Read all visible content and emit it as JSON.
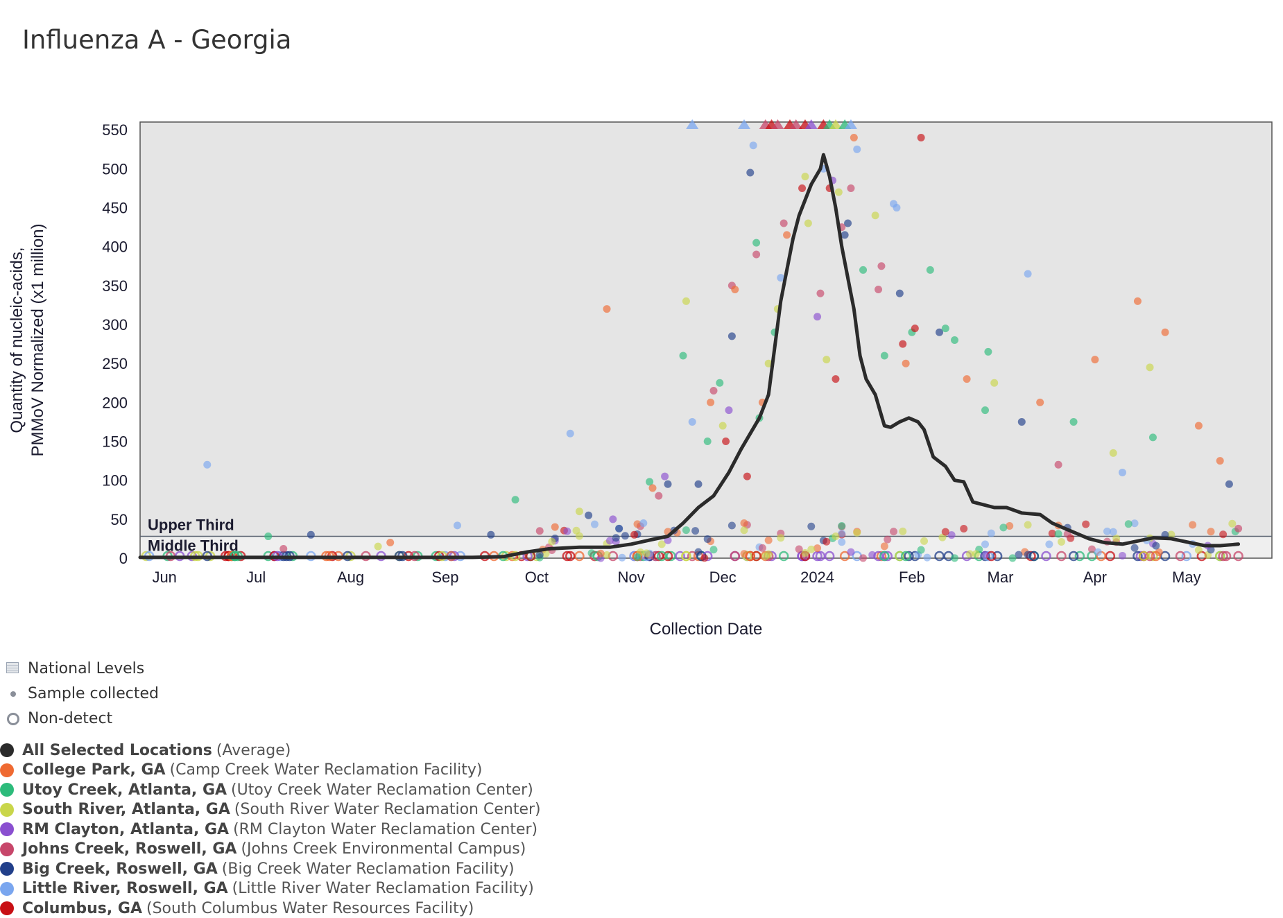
{
  "title": "Influenza A - Georgia",
  "chart_data": {
    "type": "scatter",
    "title": "Influenza A - Georgia",
    "xlabel": "Collection Date",
    "ylabel_line1": "Quantity of nucleic-acids,",
    "ylabel_line2": "PMMoV Normalized (x1 million)",
    "ylim": [
      0,
      560
    ],
    "y_ticks": [
      0,
      50,
      100,
      150,
      200,
      250,
      300,
      350,
      400,
      450,
      500,
      550
    ],
    "x_range": [
      "2023-05-24",
      "2024-05-29"
    ],
    "x_ticks": [
      {
        "date": "2023-06-01",
        "label": "Jun"
      },
      {
        "date": "2023-07-01",
        "label": "Jul"
      },
      {
        "date": "2023-08-01",
        "label": "Aug"
      },
      {
        "date": "2023-09-01",
        "label": "Sep"
      },
      {
        "date": "2023-10-01",
        "label": "Oct"
      },
      {
        "date": "2023-11-01",
        "label": "Nov"
      },
      {
        "date": "2023-12-01",
        "label": "Dec"
      },
      {
        "date": "2024-01-01",
        "label": "2024"
      },
      {
        "date": "2024-02-01",
        "label": "Feb"
      },
      {
        "date": "2024-03-01",
        "label": "Mar"
      },
      {
        "date": "2024-04-01",
        "label": "Apr"
      },
      {
        "date": "2024-05-01",
        "label": "May"
      }
    ],
    "threshold": {
      "value": 28,
      "upper_label": "Upper Third",
      "middle_label": "Middle Third"
    },
    "grid": false,
    "legend_position": "bottom-left",
    "average_series": {
      "name": "All Selected Locations",
      "color": "#2b2b2b",
      "points": [
        [
          "2023-05-24",
          1
        ],
        [
          "2023-06-15",
          1
        ],
        [
          "2023-07-15",
          1
        ],
        [
          "2023-08-15",
          1
        ],
        [
          "2023-09-10",
          1
        ],
        [
          "2023-09-20",
          2
        ],
        [
          "2023-09-28",
          8
        ],
        [
          "2023-10-05",
          12
        ],
        [
          "2023-10-15",
          14
        ],
        [
          "2023-10-25",
          14
        ],
        [
          "2023-11-01",
          18
        ],
        [
          "2023-11-08",
          24
        ],
        [
          "2023-11-13",
          28
        ],
        [
          "2023-11-18",
          45
        ],
        [
          "2023-11-23",
          65
        ],
        [
          "2023-11-28",
          80
        ],
        [
          "2023-12-03",
          110
        ],
        [
          "2023-12-07",
          140
        ],
        [
          "2023-12-10",
          160
        ],
        [
          "2023-12-13",
          180
        ],
        [
          "2023-12-16",
          210
        ],
        [
          "2023-12-18",
          270
        ],
        [
          "2023-12-20",
          330
        ],
        [
          "2023-12-22",
          370
        ],
        [
          "2023-12-24",
          410
        ],
        [
          "2023-12-26",
          440
        ],
        [
          "2023-12-28",
          460
        ],
        [
          "2023-12-30",
          480
        ],
        [
          "2024-01-02",
          500
        ],
        [
          "2024-01-03",
          518
        ],
        [
          "2024-01-05",
          490
        ],
        [
          "2024-01-07",
          450
        ],
        [
          "2024-01-09",
          400
        ],
        [
          "2024-01-11",
          360
        ],
        [
          "2024-01-13",
          320
        ],
        [
          "2024-01-15",
          260
        ],
        [
          "2024-01-17",
          230
        ],
        [
          "2024-01-20",
          210
        ],
        [
          "2024-01-23",
          170
        ],
        [
          "2024-01-25",
          168
        ],
        [
          "2024-01-28",
          175
        ],
        [
          "2024-01-31",
          180
        ],
        [
          "2024-02-03",
          175
        ],
        [
          "2024-02-05",
          165
        ],
        [
          "2024-02-08",
          130
        ],
        [
          "2024-02-12",
          118
        ],
        [
          "2024-02-15",
          100
        ],
        [
          "2024-02-18",
          98
        ],
        [
          "2024-02-21",
          72
        ],
        [
          "2024-02-25",
          68
        ],
        [
          "2024-02-28",
          65
        ],
        [
          "2024-03-03",
          65
        ],
        [
          "2024-03-08",
          58
        ],
        [
          "2024-03-14",
          56
        ],
        [
          "2024-03-18",
          45
        ],
        [
          "2024-03-24",
          35
        ],
        [
          "2024-03-30",
          25
        ],
        [
          "2024-04-04",
          20
        ],
        [
          "2024-04-10",
          18
        ],
        [
          "2024-04-15",
          22
        ],
        [
          "2024-04-20",
          26
        ],
        [
          "2024-04-26",
          25
        ],
        [
          "2024-05-02",
          20
        ],
        [
          "2024-05-07",
          16
        ],
        [
          "2024-05-12",
          16
        ],
        [
          "2024-05-18",
          18
        ]
      ]
    },
    "series_meta": [
      {
        "name": "College Park, GA",
        "color": "#ef6a32"
      },
      {
        "name": "Utoy Creek, Atlanta, GA",
        "color": "#2dbb7b"
      },
      {
        "name": "South River, Atlanta, GA",
        "color": "#c9d64a"
      },
      {
        "name": "RM Clayton, Atlanta, GA",
        "color": "#8a4fd0"
      },
      {
        "name": "Johns Creek, Roswell, GA",
        "color": "#c7466a"
      },
      {
        "name": "Big Creek, Roswell, GA",
        "color": "#213f8a"
      },
      {
        "name": "Little River, Roswell, GA",
        "color": "#7aa6ef"
      },
      {
        "name": "Columbus, GA",
        "color": "#c80f14"
      }
    ],
    "samples": [
      [
        "2023-06-15",
        120,
        6
      ],
      [
        "2023-07-05",
        28,
        1
      ],
      [
        "2023-07-19",
        30,
        5
      ],
      [
        "2023-07-10",
        12,
        4
      ],
      [
        "2023-08-10",
        15,
        2
      ],
      [
        "2023-08-14",
        20,
        0
      ],
      [
        "2023-09-05",
        42,
        6
      ],
      [
        "2023-09-16",
        30,
        5
      ],
      [
        "2023-09-24",
        75,
        1
      ],
      [
        "2023-10-02",
        35,
        4
      ],
      [
        "2023-10-07",
        40,
        0
      ],
      [
        "2023-10-12",
        160,
        6
      ],
      [
        "2023-10-15",
        60,
        2
      ],
      [
        "2023-10-18",
        55,
        5
      ],
      [
        "2023-10-24",
        320,
        0
      ],
      [
        "2023-10-26",
        50,
        3
      ],
      [
        "2023-10-28",
        38,
        5
      ],
      [
        "2023-11-02",
        30,
        7
      ],
      [
        "2023-11-05",
        45,
        6
      ],
      [
        "2023-11-07",
        98,
        1
      ],
      [
        "2023-11-08",
        90,
        0
      ],
      [
        "2023-11-10",
        80,
        4
      ],
      [
        "2023-11-12",
        105,
        3
      ],
      [
        "2023-11-13",
        95,
        5
      ],
      [
        "2023-11-18",
        260,
        1
      ],
      [
        "2023-11-19",
        330,
        2
      ],
      [
        "2023-11-21",
        175,
        6
      ],
      [
        "2023-11-23",
        95,
        5
      ],
      [
        "2023-11-26",
        150,
        1
      ],
      [
        "2023-11-27",
        200,
        0
      ],
      [
        "2023-11-28",
        215,
        4
      ],
      [
        "2023-11-30",
        225,
        1
      ],
      [
        "2023-12-01",
        170,
        2
      ],
      [
        "2023-12-02",
        150,
        7
      ],
      [
        "2023-12-03",
        190,
        3
      ],
      [
        "2023-12-04",
        285,
        5
      ],
      [
        "2023-12-04",
        350,
        4
      ],
      [
        "2023-12-05",
        345,
        0
      ],
      [
        "2023-12-09",
        105,
        7
      ],
      [
        "2023-12-10",
        495,
        5
      ],
      [
        "2023-12-11",
        530,
        6
      ],
      [
        "2023-12-12",
        390,
        4
      ],
      [
        "2023-12-12",
        405,
        1
      ],
      [
        "2023-12-13",
        180,
        1
      ],
      [
        "2023-12-14",
        200,
        0
      ],
      [
        "2023-12-16",
        250,
        2
      ],
      [
        "2023-12-18",
        290,
        1
      ],
      [
        "2023-12-19",
        320,
        2
      ],
      [
        "2023-12-20",
        360,
        6
      ],
      [
        "2023-12-21",
        430,
        4
      ],
      [
        "2023-12-22",
        415,
        0
      ],
      [
        "2023-12-27",
        475,
        7
      ],
      [
        "2023-12-28",
        490,
        2
      ],
      [
        "2023-12-29",
        430,
        2
      ],
      [
        "2024-01-01",
        310,
        3
      ],
      [
        "2024-01-02",
        340,
        4
      ],
      [
        "2024-01-03",
        500,
        6
      ],
      [
        "2024-01-04",
        255,
        2
      ],
      [
        "2024-01-05",
        475,
        7
      ],
      [
        "2024-01-06",
        485,
        3
      ],
      [
        "2024-01-07",
        230,
        7
      ],
      [
        "2024-01-08",
        470,
        2
      ],
      [
        "2024-01-09",
        425,
        4
      ],
      [
        "2024-01-10",
        415,
        5
      ],
      [
        "2024-01-11",
        430,
        5
      ],
      [
        "2024-01-12",
        475,
        4
      ],
      [
        "2024-01-13",
        540,
        0
      ],
      [
        "2024-01-14",
        525,
        6
      ],
      [
        "2024-01-16",
        370,
        1
      ],
      [
        "2024-01-20",
        440,
        2
      ],
      [
        "2024-01-21",
        345,
        4
      ],
      [
        "2024-01-22",
        375,
        4
      ],
      [
        "2024-01-23",
        260,
        1
      ],
      [
        "2024-01-26",
        455,
        6
      ],
      [
        "2024-01-27",
        450,
        6
      ],
      [
        "2024-01-28",
        340,
        5
      ],
      [
        "2024-01-29",
        275,
        7
      ],
      [
        "2024-01-30",
        250,
        0
      ],
      [
        "2024-02-01",
        290,
        1
      ],
      [
        "2024-02-02",
        295,
        7
      ],
      [
        "2024-02-04",
        540,
        7
      ],
      [
        "2024-02-07",
        370,
        1
      ],
      [
        "2024-02-10",
        290,
        5
      ],
      [
        "2024-02-12",
        295,
        1
      ],
      [
        "2024-02-15",
        280,
        1
      ],
      [
        "2024-02-19",
        230,
        0
      ],
      [
        "2024-02-25",
        190,
        1
      ],
      [
        "2024-02-26",
        265,
        1
      ],
      [
        "2024-02-28",
        225,
        2
      ],
      [
        "2024-03-08",
        175,
        5
      ],
      [
        "2024-03-10",
        365,
        6
      ],
      [
        "2024-03-14",
        200,
        0
      ],
      [
        "2024-03-20",
        120,
        4
      ],
      [
        "2024-03-25",
        175,
        1
      ],
      [
        "2024-04-01",
        255,
        0
      ],
      [
        "2024-04-07",
        135,
        2
      ],
      [
        "2024-04-10",
        110,
        6
      ],
      [
        "2024-04-15",
        330,
        0
      ],
      [
        "2024-04-19",
        245,
        2
      ],
      [
        "2024-04-20",
        155,
        1
      ],
      [
        "2024-04-24",
        290,
        0
      ],
      [
        "2024-05-05",
        170,
        0
      ],
      [
        "2024-05-12",
        125,
        0
      ],
      [
        "2024-05-15",
        95,
        5
      ],
      [
        "2024-05-18",
        38,
        4
      ]
    ],
    "above_axis_markers": [
      [
        "2023-11-21",
        6
      ],
      [
        "2023-12-08",
        6
      ],
      [
        "2023-12-15",
        4
      ],
      [
        "2023-12-17",
        7
      ],
      [
        "2023-12-19",
        4
      ],
      [
        "2023-12-23",
        7
      ],
      [
        "2023-12-25",
        4
      ],
      [
        "2023-12-28",
        7
      ],
      [
        "2023-12-30",
        3
      ],
      [
        "2024-01-03",
        7
      ],
      [
        "2024-01-05",
        1
      ],
      [
        "2024-01-07",
        2
      ],
      [
        "2024-01-10",
        1
      ],
      [
        "2024-01-12",
        6
      ]
    ]
  },
  "legend": {
    "symbols": [
      {
        "icon": "striped-box-icon",
        "label": "National Levels"
      },
      {
        "icon": "dot-icon",
        "label": "Sample collected"
      },
      {
        "icon": "ring-icon",
        "label": "Non-detect"
      }
    ],
    "locations": [
      {
        "name": "All Selected Locations",
        "detail": "(Average)",
        "color": "#2b2b2b"
      },
      {
        "name": "College Park, GA",
        "detail": "(Camp Creek Water Reclamation Facility)",
        "color": "#ef6a32"
      },
      {
        "name": "Utoy Creek, Atlanta, GA",
        "detail": "(Utoy Creek Water Reclamation Center)",
        "color": "#2dbb7b"
      },
      {
        "name": "South River, Atlanta, GA",
        "detail": "(South River Water Reclamation Center)",
        "color": "#c9d64a"
      },
      {
        "name": "RM Clayton, Atlanta, GA",
        "detail": "(RM Clayton Water Reclamation Center)",
        "color": "#8a4fd0"
      },
      {
        "name": "Johns Creek, Roswell, GA",
        "detail": "(Johns Creek Environmental Campus)",
        "color": "#c7466a"
      },
      {
        "name": "Big Creek, Roswell, GA",
        "detail": "(Big Creek Water Reclamation Facility)",
        "color": "#213f8a"
      },
      {
        "name": "Little River, Roswell, GA",
        "detail": "(Little River Water Reclamation Facility)",
        "color": "#7aa6ef"
      },
      {
        "name": "Columbus, GA",
        "detail": "(South Columbus Water Resources Facility)",
        "color": "#c80f14"
      }
    ]
  }
}
